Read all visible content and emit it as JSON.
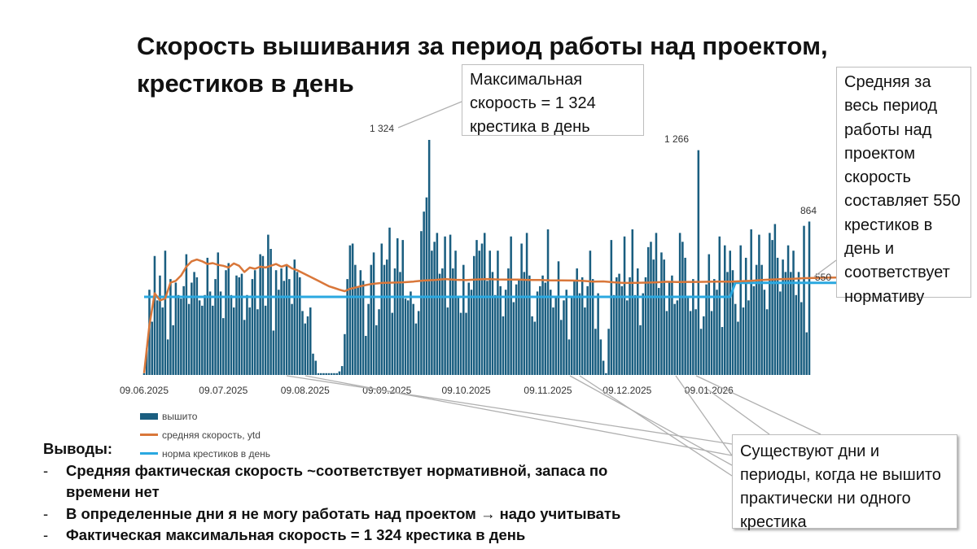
{
  "title": "Скорость вышивания за период работы над проектом, крестиков в день",
  "callouts": {
    "max": "Максимальная скорость = 1 324 крестика в день",
    "avg": "Средняя за весь период работы над проектом скорость составляет 550 крестиков в день и соответствует нормативу",
    "gap": "Существуют дни и периоды, когда не вышито практически ни одного крестика"
  },
  "legend": {
    "bars": "вышито",
    "avg_line": "средняя скорость, ytd",
    "norm_line": "норма крестиков в день"
  },
  "conclusions": {
    "heading": "Выводы:",
    "items": [
      "Средняя фактическая скорость ~соответствует нормативной, запаса по времени нет",
      "В определенные дни я не могу работать над проектом → надо учитывать",
      "Фактическая максимальная скорость = 1 324 крестика в день"
    ],
    "dash": "-"
  },
  "colors": {
    "bars": "#1a5e80",
    "avg_line": "#d9773a",
    "norm_line": "#2aa8e0",
    "callout_border": "#bdbdbd",
    "leader": "#b0b0b0"
  },
  "chart_data": {
    "type": "bar",
    "title": "Скорость вышивания за период работы над проектом, крестиков в день",
    "x_start": "09.06.2025",
    "x_end": "25.01.2026",
    "x_ticks": [
      "09.06.2025",
      "09.07.2025",
      "09.08.2025",
      "09.09.2025",
      "09.10.2025",
      "09.11.2025",
      "09.12.2025",
      "09.01.2026"
    ],
    "ylim": [
      0,
      1324
    ],
    "grid": false,
    "legend_position": "bottom-left",
    "data_labels": [
      {
        "text": "1 324",
        "value": 1324
      },
      {
        "text": "1 266",
        "value": 1266
      },
      {
        "text": "864",
        "value": 864
      },
      {
        "text": "550",
        "value": 550
      }
    ],
    "series": [
      {
        "name": "вышито",
        "type": "bar",
        "values": [
          10,
          150,
          480,
          300,
          670,
          420,
          560,
          380,
          700,
          200,
          540,
          280,
          520,
          450,
          430,
          500,
          680,
          400,
          520,
          580,
          550,
          420,
          390,
          450,
          660,
          470,
          390,
          540,
          690,
          470,
          320,
          590,
          630,
          450,
          380,
          560,
          550,
          570,
          310,
          450,
          380,
          540,
          590,
          370,
          680,
          670,
          390,
          790,
          710,
          250,
          590,
          480,
          600,
          530,
          620,
          540,
          400,
          650,
          580,
          550,
          360,
          290,
          330,
          380,
          120,
          80,
          10,
          10,
          10,
          10,
          10,
          10,
          10,
          10,
          20,
          50,
          230,
          540,
          730,
          740,
          620,
          500,
          590,
          530,
          220,
          400,
          620,
          690,
          280,
          370,
          740,
          620,
          650,
          830,
          350,
          600,
          770,
          580,
          760,
          430,
          420,
          470,
          400,
          290,
          360,
          810,
          920,
          1000,
          1324,
          700,
          750,
          800,
          570,
          600,
          780,
          380,
          790,
          600,
          700,
          440,
          350,
          620,
          350,
          520,
          480,
          670,
          760,
          700,
          740,
          800,
          530,
          700,
          580,
          450,
          700,
          500,
          330,
          480,
          600,
          780,
          410,
          510,
          540,
          740,
          580,
          800,
          560,
          330,
          300,
          470,
          500,
          560,
          520,
          820,
          480,
          380,
          440,
          640,
          310,
          420,
          480,
          200,
          440,
          530,
          600,
          460,
          550,
          380,
          500,
          700,
          540,
          260,
          460,
          200,
          80,
          10,
          260,
          760,
          450,
          550,
          570,
          500,
          780,
          420,
          550,
          820,
          450,
          600,
          280,
          460,
          550,
          720,
          750,
          650,
          800,
          490,
          690,
          650,
          360,
          520,
          560,
          400,
          420,
          800,
          750,
          660,
          440,
          360,
          540,
          370,
          1266,
          260,
          330,
          510,
          680,
          360,
          540,
          480,
          780,
          270,
          730,
          580,
          700,
          590,
          400,
          300,
          730,
          380,
          660,
          420,
          820,
          500,
          620,
          790,
          620,
          480,
          370,
          800,
          760,
          850,
          660,
          470,
          650,
          580,
          730,
          580,
          700,
          450,
          580,
          410,
          840,
          240,
          864
        ]
      },
      {
        "name": "средняя скорость, ytd",
        "type": "line",
        "values": [
          [
            0,
            10
          ],
          [
            2,
            280
          ],
          [
            4,
            460
          ],
          [
            6,
            420
          ],
          [
            8,
            430
          ],
          [
            10,
            520
          ],
          [
            12,
            530
          ],
          [
            14,
            560
          ],
          [
            16,
            610
          ],
          [
            18,
            640
          ],
          [
            20,
            650
          ],
          [
            22,
            640
          ],
          [
            24,
            625
          ],
          [
            26,
            630
          ],
          [
            28,
            620
          ],
          [
            30,
            615
          ],
          [
            32,
            605
          ],
          [
            34,
            628
          ],
          [
            36,
            615
          ],
          [
            38,
            580
          ],
          [
            40,
            605
          ],
          [
            42,
            598
          ],
          [
            44,
            610
          ],
          [
            46,
            605
          ],
          [
            48,
            615
          ],
          [
            50,
            625
          ],
          [
            52,
            610
          ],
          [
            54,
            620
          ],
          [
            56,
            600
          ],
          [
            58,
            590
          ],
          [
            60,
            575
          ],
          [
            62,
            560
          ],
          [
            64,
            545
          ],
          [
            66,
            530
          ],
          [
            68,
            515
          ],
          [
            70,
            500
          ],
          [
            72,
            490
          ],
          [
            74,
            480
          ],
          [
            76,
            472
          ],
          [
            78,
            485
          ],
          [
            80,
            492
          ],
          [
            82,
            500
          ],
          [
            86,
            512
          ],
          [
            90,
            518
          ],
          [
            94,
            520
          ],
          [
            98,
            522
          ],
          [
            102,
            526
          ],
          [
            106,
            532
          ],
          [
            110,
            535
          ],
          [
            114,
            540
          ],
          [
            118,
            536
          ],
          [
            122,
            534
          ],
          [
            126,
            538
          ],
          [
            130,
            540
          ],
          [
            134,
            538
          ],
          [
            138,
            537
          ],
          [
            142,
            537
          ],
          [
            146,
            535
          ],
          [
            150,
            535
          ],
          [
            154,
            533
          ],
          [
            158,
            533
          ],
          [
            162,
            532
          ],
          [
            166,
            530
          ],
          [
            170,
            526
          ],
          [
            174,
            527
          ],
          [
            178,
            522
          ],
          [
            182,
            518
          ],
          [
            186,
            519
          ],
          [
            190,
            520
          ],
          [
            194,
            522
          ],
          [
            198,
            525
          ],
          [
            202,
            523
          ],
          [
            206,
            524
          ],
          [
            210,
            524
          ],
          [
            214,
            525
          ],
          [
            218,
            526
          ],
          [
            222,
            525
          ],
          [
            226,
            528
          ],
          [
            230,
            530
          ],
          [
            234,
            535
          ],
          [
            238,
            538
          ],
          [
            242,
            540
          ],
          [
            246,
            542
          ],
          [
            250,
            545
          ],
          [
            254,
            546
          ],
          [
            258,
            548
          ],
          [
            262,
            549
          ],
          [
            266,
            550
          ],
          [
            270,
            550
          ]
        ]
      },
      {
        "name": "норма крестиков в день",
        "type": "line",
        "values": [
          [
            0,
            440
          ],
          [
            218,
            440
          ],
          [
            222,
            440
          ],
          [
            224,
            519
          ],
          [
            228,
            519
          ],
          [
            270,
            519
          ]
        ]
      }
    ]
  }
}
